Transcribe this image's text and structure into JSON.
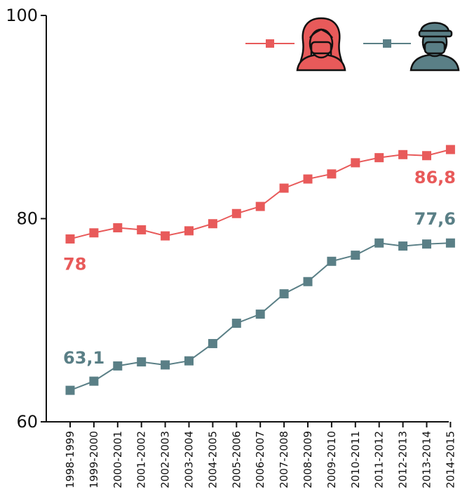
{
  "chart_data": {
    "type": "line",
    "title": "",
    "xlabel": "",
    "ylabel": "",
    "ylim": [
      60,
      100
    ],
    "y_ticks": [
      "60",
      "80",
      "100"
    ],
    "categories": [
      "1998-1999",
      "1999-2000",
      "2000-2001",
      "2001-2002",
      "2002-2003",
      "2003-2004",
      "2004-2005",
      "2005-2006",
      "2006-2007",
      "2007-2008",
      "2008-2009",
      "2009-2010",
      "2010-2011",
      "2011-2012",
      "2012-2013",
      "2013-2014",
      "2014-2015"
    ],
    "series": [
      {
        "legend_icon": "girl-icon",
        "color": "#E85A5A",
        "values": [
          78.0,
          78.6,
          79.1,
          78.9,
          78.3,
          78.8,
          79.5,
          80.5,
          81.2,
          83.0,
          83.9,
          84.4,
          85.5,
          86.0,
          86.3,
          86.2,
          86.8
        ],
        "first_label": "78",
        "last_label": "86,8"
      },
      {
        "legend_icon": "boy-icon",
        "color": "#5A7F86",
        "values": [
          63.1,
          64.0,
          65.5,
          65.9,
          65.6,
          66.0,
          67.7,
          69.7,
          70.6,
          72.6,
          73.8,
          75.8,
          76.4,
          77.6,
          77.3,
          77.5,
          77.6
        ],
        "first_label": "63,1",
        "last_label": "77,6"
      }
    ],
    "legend": {
      "position": "top-right"
    },
    "grid": false
  }
}
